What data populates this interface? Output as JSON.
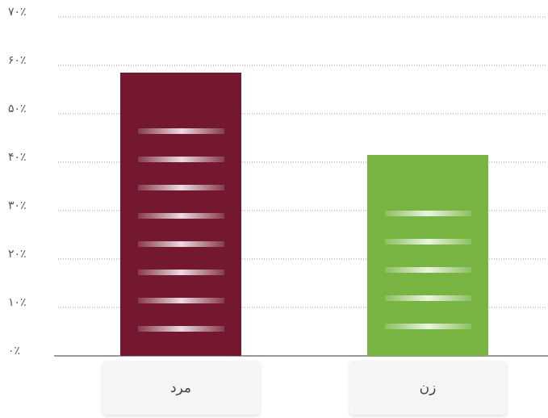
{
  "chart_data": {
    "type": "bar",
    "categories": [
      "مرد",
      "زن"
    ],
    "values": [
      58.5,
      41.5
    ],
    "colors": [
      "#73182f",
      "#78b442"
    ],
    "ylim": [
      0,
      70
    ],
    "yticks": [
      {
        "value": 0,
        "label": "۰٪"
      },
      {
        "value": 10,
        "label": "۱۰٪"
      },
      {
        "value": 20,
        "label": "۲۰٪"
      },
      {
        "value": 30,
        "label": "۳۰٪"
      },
      {
        "value": 40,
        "label": "۴۰٪"
      },
      {
        "value": 50,
        "label": "۵۰٪"
      },
      {
        "value": 60,
        "label": "۶۰٪"
      },
      {
        "value": 70,
        "label": "۷۰٪"
      }
    ],
    "grid": true
  }
}
